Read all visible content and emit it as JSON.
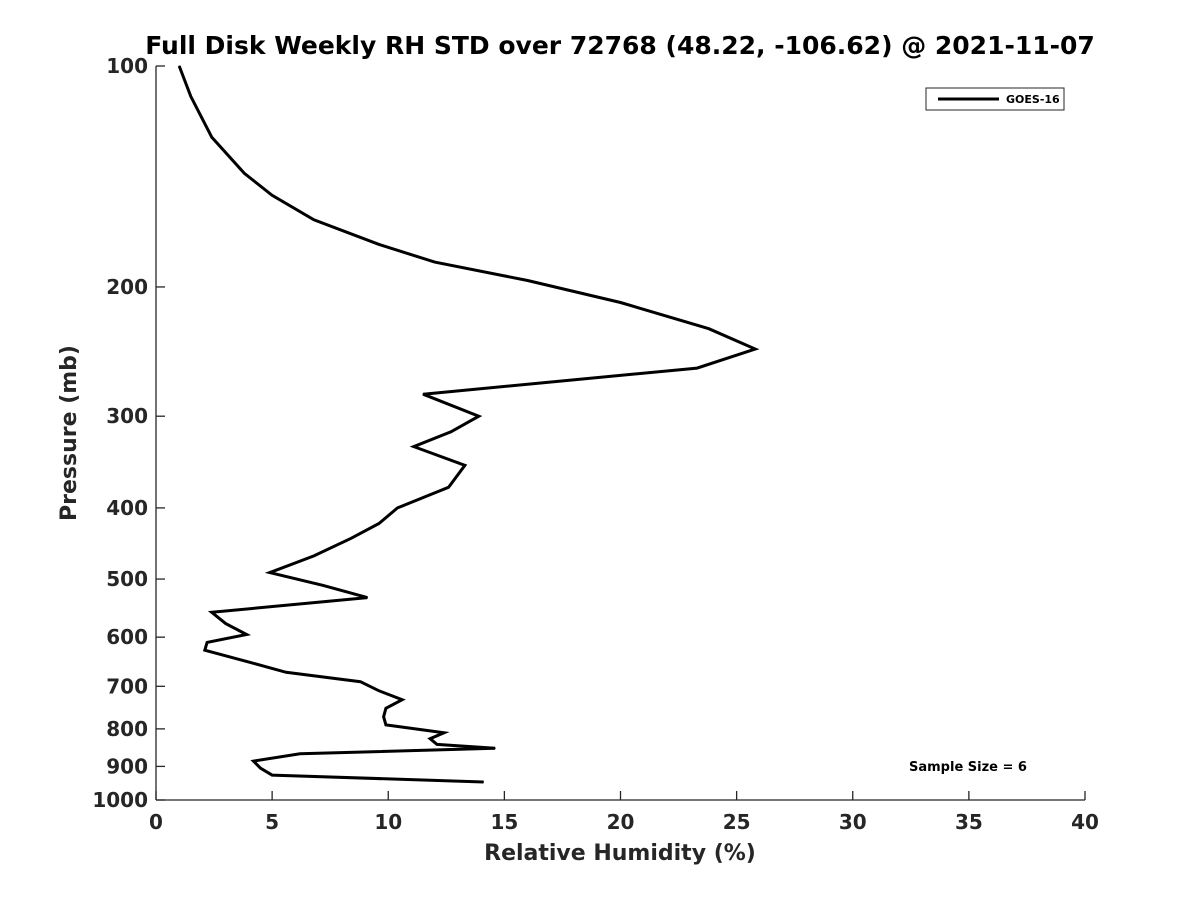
{
  "chart_data": {
    "type": "line",
    "title": "Full Disk Weekly RH STD over 72768 (48.22, -106.62) @ 2021-11-07",
    "xlabel": "Relative Humidity (%)",
    "ylabel": "Pressure (mb)",
    "xlim": [
      0,
      40
    ],
    "ylim": [
      100,
      1000
    ],
    "y_scale": "log",
    "y_reversed": true,
    "x_ticks": [
      "0",
      "5",
      "10",
      "15",
      "20",
      "25",
      "30",
      "35",
      "40"
    ],
    "y_ticks": [
      "100",
      "200",
      "300",
      "400",
      "500",
      "600",
      "700",
      "800",
      "900",
      "1000"
    ],
    "legend_placement": "top-right",
    "annotation": "Sample Size = 6",
    "series": [
      {
        "name": "GOES-16",
        "color": "#000000",
        "x": [
          1.0,
          1.5,
          2.4,
          3.8,
          5.0,
          6.8,
          9.6,
          12.0,
          16.0,
          20.0,
          23.8,
          25.8,
          23.3,
          11.5,
          13.9,
          12.7,
          11.1,
          13.3,
          12.6,
          10.4,
          9.6,
          8.4,
          6.8,
          4.9,
          7.2,
          9.1,
          2.4,
          3.0,
          3.9,
          2.2,
          2.1,
          4.1,
          5.6,
          8.8,
          9.6,
          10.6,
          9.9,
          9.8,
          9.9,
          12.4,
          11.8,
          12.1,
          14.6,
          6.2,
          4.2,
          4.5,
          5.0,
          14.1
        ],
        "y": [
          100,
          110,
          125,
          140,
          150,
          162,
          175,
          185,
          196,
          210,
          228,
          243,
          258,
          280,
          300,
          315,
          330,
          350,
          375,
          400,
          420,
          440,
          465,
          490,
          510,
          530,
          555,
          575,
          595,
          610,
          625,
          650,
          670,
          690,
          710,
          730,
          750,
          770,
          790,
          810,
          825,
          840,
          850,
          865,
          885,
          905,
          925,
          945
        ]
      }
    ]
  }
}
